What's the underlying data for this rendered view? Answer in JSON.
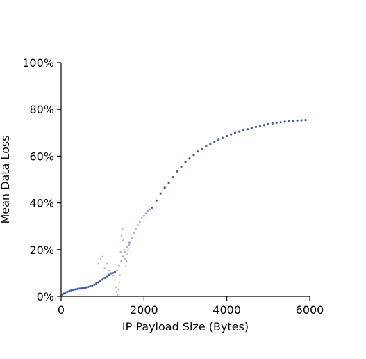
{
  "chart_data": {
    "type": "scatter",
    "title": "",
    "xlabel": "IP Payload Size (Bytes)",
    "ylabel": "Mean Data Loss",
    "xlim": [
      0,
      6000
    ],
    "ylim": [
      0,
      1.0
    ],
    "x_ticks": [
      0,
      2000,
      4000,
      6000
    ],
    "x_tick_labels": [
      "0",
      "2000",
      "4000",
      "6000"
    ],
    "y_ticks": [
      0,
      0.2,
      0.4,
      0.6,
      0.8,
      1.0
    ],
    "y_tick_labels": [
      "0%",
      "20%",
      "40%",
      "60%",
      "80%",
      "100%"
    ],
    "grid": false,
    "legend": "none",
    "colors": {
      "dense": "#2f4b99",
      "sparse": "#8f9ec7",
      "outlier": "#9fa7b5",
      "axis": "#000000"
    },
    "series": [
      {
        "style": "dense",
        "points": [
          [
            20,
            0.008
          ],
          [
            60,
            0.012
          ],
          [
            100,
            0.016
          ],
          [
            150,
            0.02
          ],
          [
            200,
            0.023
          ],
          [
            250,
            0.026
          ],
          [
            300,
            0.028
          ],
          [
            350,
            0.03
          ],
          [
            400,
            0.032
          ],
          [
            450,
            0.033
          ],
          [
            500,
            0.034
          ],
          [
            550,
            0.036
          ],
          [
            600,
            0.038
          ],
          [
            650,
            0.04
          ],
          [
            700,
            0.043
          ],
          [
            750,
            0.046
          ],
          [
            800,
            0.05
          ],
          [
            850,
            0.055
          ],
          [
            900,
            0.06
          ],
          [
            950,
            0.066
          ],
          [
            1000,
            0.072
          ],
          [
            1050,
            0.079
          ],
          [
            1100,
            0.086
          ],
          [
            1150,
            0.092
          ],
          [
            1200,
            0.098
          ],
          [
            1250,
            0.1
          ],
          [
            1300,
            0.105
          ],
          [
            2200,
            0.38
          ],
          [
            2300,
            0.41
          ],
          [
            2400,
            0.44
          ],
          [
            2500,
            0.465
          ],
          [
            2600,
            0.485
          ],
          [
            2700,
            0.51
          ],
          [
            2800,
            0.535
          ],
          [
            2900,
            0.555
          ],
          [
            3000,
            0.575
          ],
          [
            3100,
            0.59
          ],
          [
            3200,
            0.605
          ],
          [
            3300,
            0.62
          ],
          [
            3400,
            0.63
          ],
          [
            3500,
            0.643
          ],
          [
            3600,
            0.652
          ],
          [
            3700,
            0.662
          ],
          [
            3800,
            0.67
          ],
          [
            3900,
            0.678
          ],
          [
            4000,
            0.686
          ],
          [
            4100,
            0.693
          ],
          [
            4200,
            0.7
          ],
          [
            4300,
            0.705
          ],
          [
            4400,
            0.71
          ],
          [
            4500,
            0.715
          ],
          [
            4600,
            0.72
          ],
          [
            4700,
            0.725
          ],
          [
            4800,
            0.729
          ],
          [
            4900,
            0.733
          ],
          [
            5000,
            0.737
          ],
          [
            5100,
            0.74
          ],
          [
            5200,
            0.743
          ],
          [
            5300,
            0.745
          ],
          [
            5400,
            0.747
          ],
          [
            5500,
            0.749
          ],
          [
            5600,
            0.751
          ],
          [
            5700,
            0.752
          ],
          [
            5800,
            0.753
          ],
          [
            5900,
            0.754
          ]
        ]
      },
      {
        "style": "sparse",
        "points": [
          [
            1350,
            0.11
          ],
          [
            1400,
            0.13
          ],
          [
            1450,
            0.15
          ],
          [
            1500,
            0.17
          ],
          [
            1550,
            0.19
          ],
          [
            1600,
            0.21
          ],
          [
            1650,
            0.23
          ],
          [
            1700,
            0.25
          ],
          [
            1750,
            0.27
          ],
          [
            1800,
            0.29
          ],
          [
            1850,
            0.305
          ],
          [
            1900,
            0.32
          ],
          [
            1950,
            0.335
          ],
          [
            2000,
            0.345
          ],
          [
            2050,
            0.355
          ],
          [
            2100,
            0.365
          ],
          [
            2150,
            0.372
          ]
        ]
      },
      {
        "style": "outlier",
        "points": [
          [
            900,
            0.14
          ],
          [
            950,
            0.16
          ],
          [
            1000,
            0.17
          ],
          [
            1050,
            0.12
          ],
          [
            1100,
            0.14
          ],
          [
            1150,
            0.11
          ],
          [
            1200,
            0.1
          ],
          [
            1250,
            0.09
          ],
          [
            1300,
            0.07
          ],
          [
            1320,
            0.04
          ],
          [
            1340,
            0.02
          ],
          [
            1360,
            0.005
          ],
          [
            1380,
            0.03
          ],
          [
            1400,
            0.06
          ],
          [
            1420,
            0.09
          ],
          [
            1440,
            0.19
          ],
          [
            1460,
            0.26
          ],
          [
            1480,
            0.29
          ],
          [
            1500,
            0.24
          ],
          [
            1520,
            0.2
          ],
          [
            1540,
            0.16
          ],
          [
            1560,
            0.13
          ],
          [
            1580,
            0.15
          ],
          [
            1600,
            0.18
          ],
          [
            1620,
            0.2
          ],
          [
            1640,
            0.22
          ]
        ]
      }
    ]
  }
}
